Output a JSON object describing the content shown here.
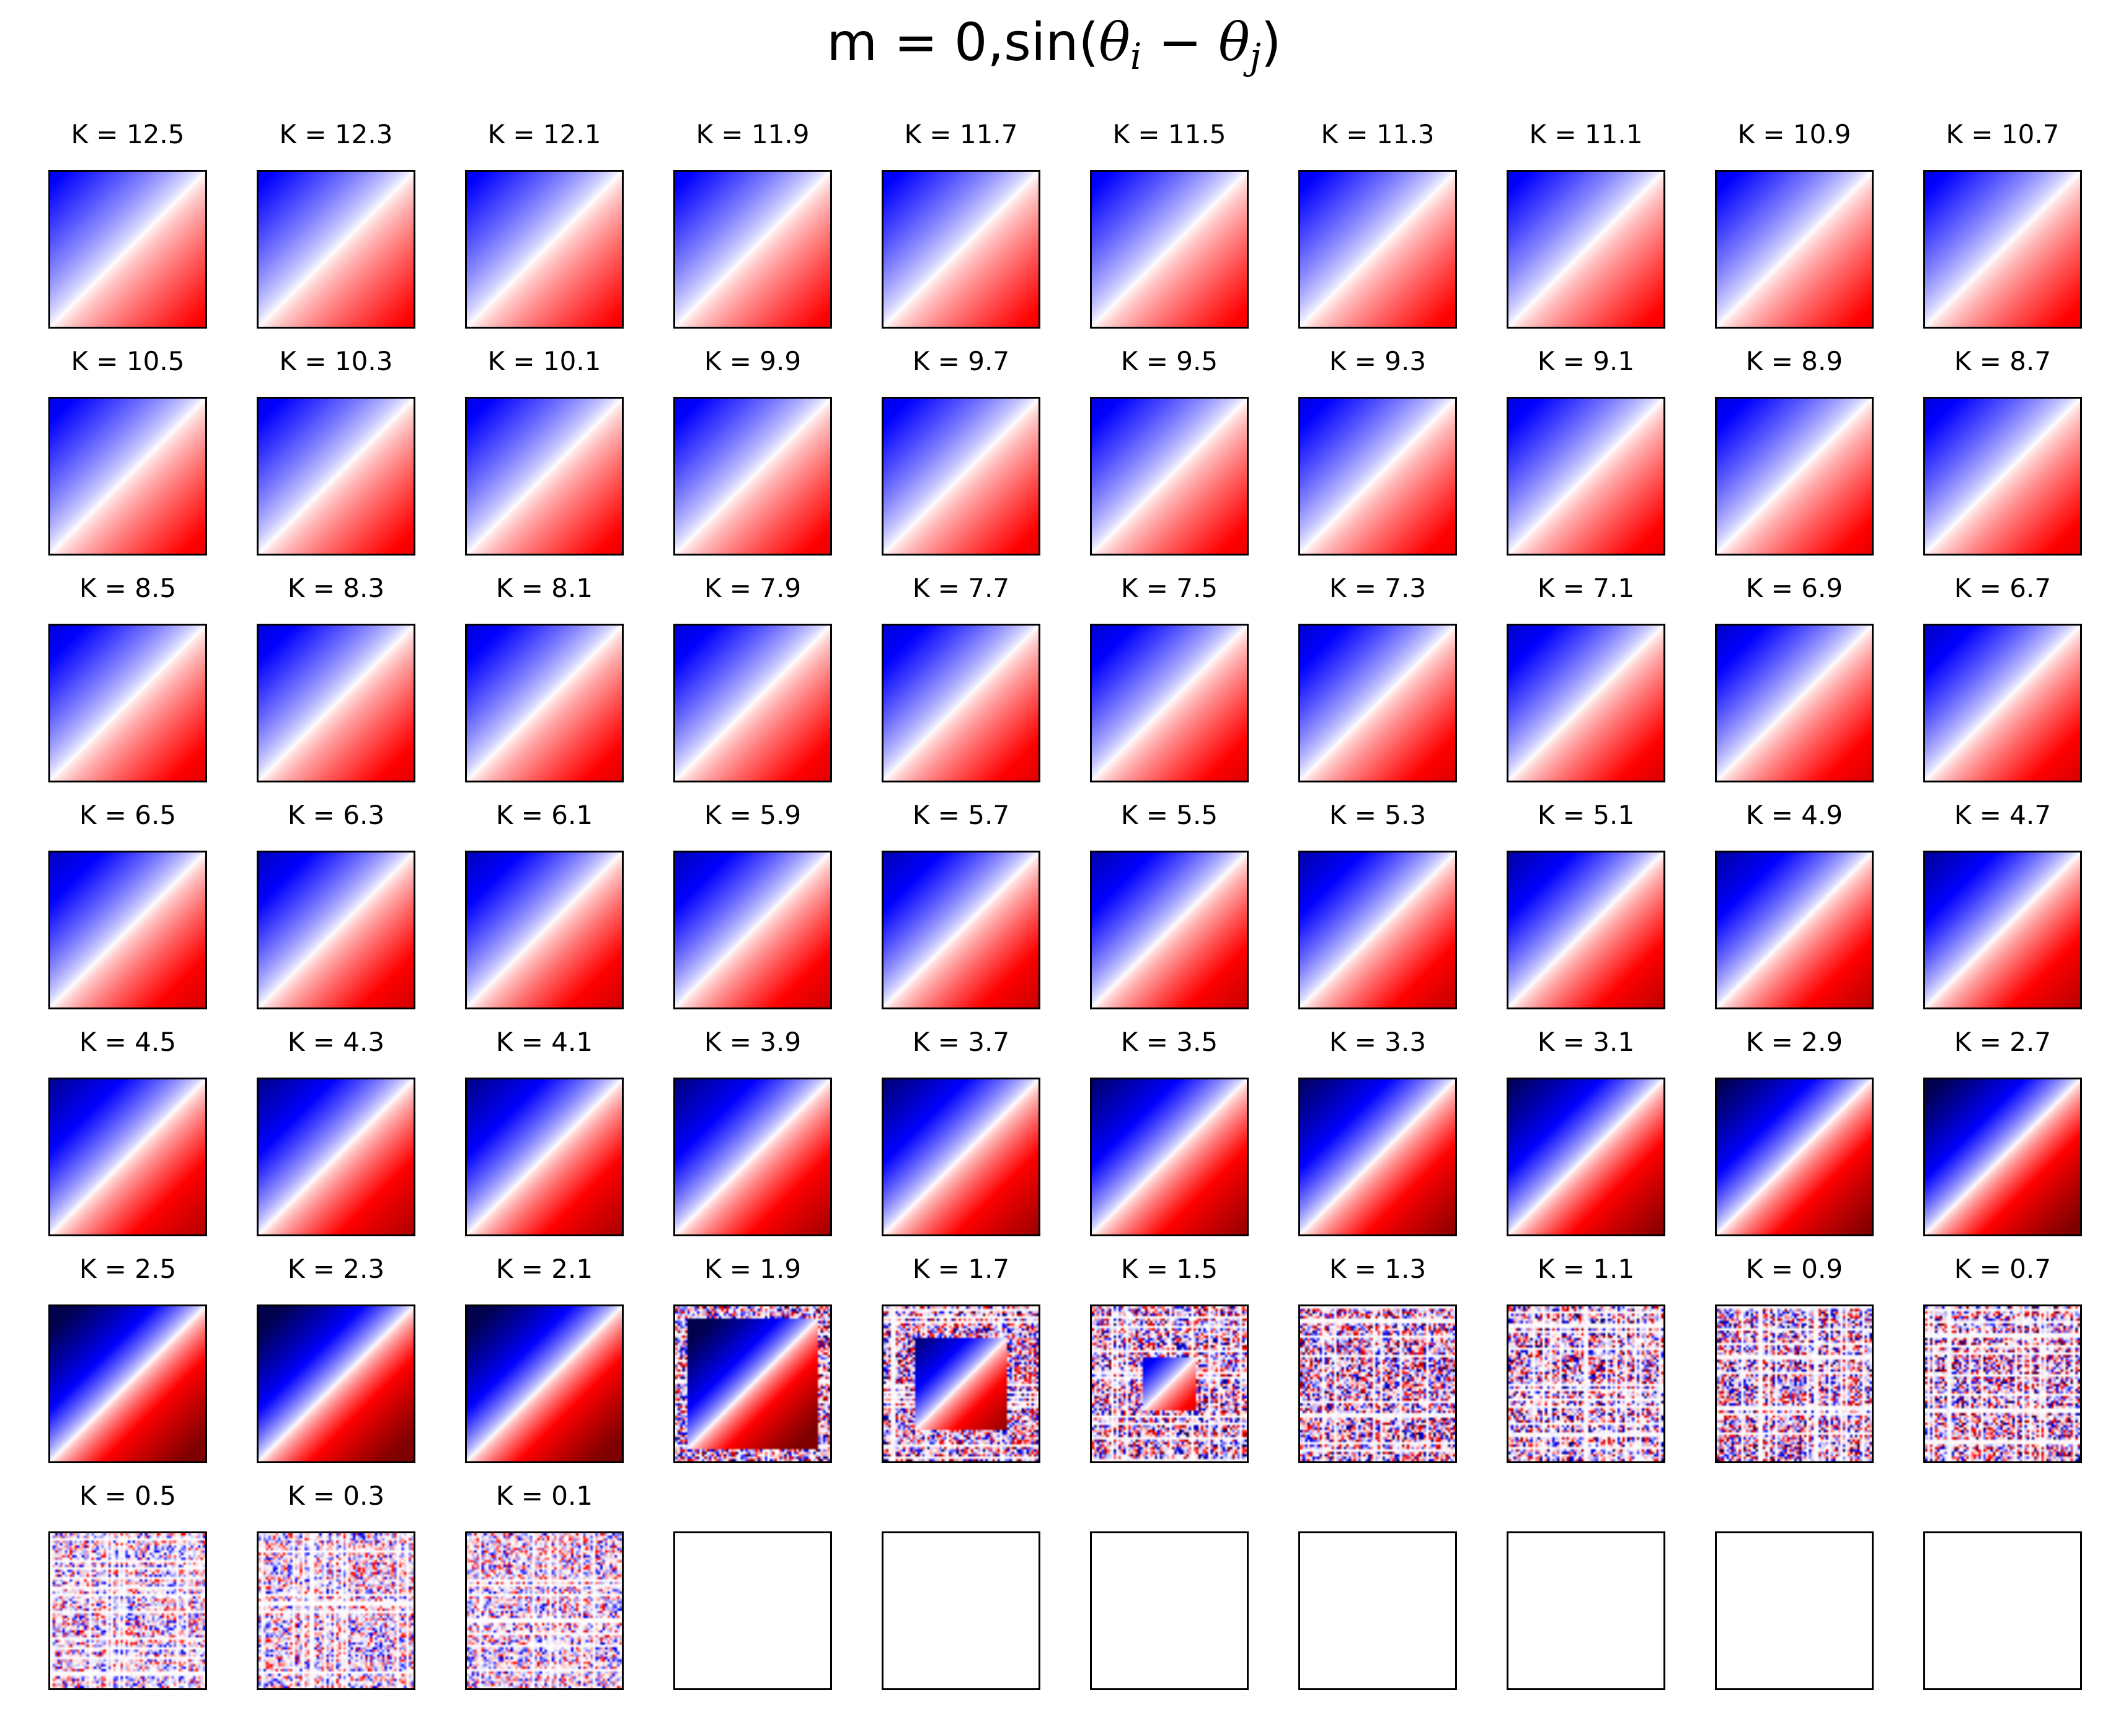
{
  "title": {
    "prefix": "m = 0,sin(",
    "theta1": "θ",
    "sub1": "i",
    "minus": " − ",
    "theta2": "θ",
    "sub2": "j",
    "suffix": ")"
  },
  "chart_data": {
    "type": "heatmap",
    "title": "m = 0,sin(θi − θj)",
    "layout": "7 rows × 10 columns of panels",
    "colormap": "bwr (blue-white-red, dark extremes)",
    "panel_label_prefix": "K = ",
    "K_values": [
      12.5,
      12.3,
      12.1,
      11.9,
      11.7,
      11.5,
      11.3,
      11.1,
      10.9,
      10.7,
      10.5,
      10.3,
      10.1,
      9.9,
      9.7,
      9.5,
      9.3,
      9.1,
      8.9,
      8.7,
      8.5,
      8.3,
      8.1,
      7.9,
      7.7,
      7.5,
      7.3,
      7.1,
      6.9,
      6.7,
      6.5,
      6.3,
      6.1,
      5.9,
      5.7,
      5.5,
      5.3,
      5.1,
      4.9,
      4.7,
      4.5,
      4.3,
      4.1,
      3.9,
      3.7,
      3.5,
      3.3,
      3.1,
      2.9,
      2.7,
      2.5,
      2.3,
      2.1,
      1.9,
      1.7,
      1.5,
      1.3,
      1.1,
      0.9,
      0.7,
      0.5,
      0.3,
      0.1
    ],
    "panel_labels": [
      "K = 12.5",
      "K = 12.3",
      "K = 12.1",
      "K = 11.9",
      "K = 11.7",
      "K = 11.5",
      "K = 11.3",
      "K = 11.1",
      "K = 10.9",
      "K = 10.7",
      "K = 10.5",
      "K = 10.3",
      "K = 10.1",
      "K = 9.9",
      "K = 9.7",
      "K = 9.5",
      "K = 9.3",
      "K = 9.1",
      "K = 8.9",
      "K = 8.7",
      "K = 8.5",
      "K = 8.3",
      "K = 8.1",
      "K = 7.9",
      "K = 7.7",
      "K = 7.5",
      "K = 7.3",
      "K = 7.1",
      "K = 6.9",
      "K = 6.7",
      "K = 6.5",
      "K = 6.3",
      "K = 6.1",
      "K = 5.9",
      "K = 5.7",
      "K = 5.5",
      "K = 5.3",
      "K = 5.1",
      "K = 4.9",
      "K = 4.7",
      "K = 4.5",
      "K = 4.3",
      "K = 4.1",
      "K = 3.9",
      "K = 3.7",
      "K = 3.5",
      "K = 3.3",
      "K = 3.1",
      "K = 2.9",
      "K = 2.7",
      "K = 2.5",
      "K = 2.3",
      "K = 2.1",
      "K = 1.9",
      "K = 1.7",
      "K = 1.5",
      "K = 1.3",
      "K = 1.1",
      "K = 0.9",
      "K = 0.7",
      "K = 0.5",
      "K = 0.3",
      "K = 0.1"
    ],
    "empty_panels": 7,
    "diagonal_value": 0,
    "upper_triangle_sign": "positive (red)",
    "lower_triangle_sign": "negative (blue)",
    "ordered_regime": "K ≥ 2.1",
    "partially_ordered_regime": "K = 1.9 to 1.5",
    "disordered_regime": "K ≤ 1.3",
    "colors": {
      "negative": "#0000ff",
      "zero": "#ffffff",
      "positive": "#ff0000",
      "negative_extreme": "#00004c",
      "positive_extreme": "#7f0000",
      "frame": "#000000"
    },
    "axes_ticks": "none"
  }
}
